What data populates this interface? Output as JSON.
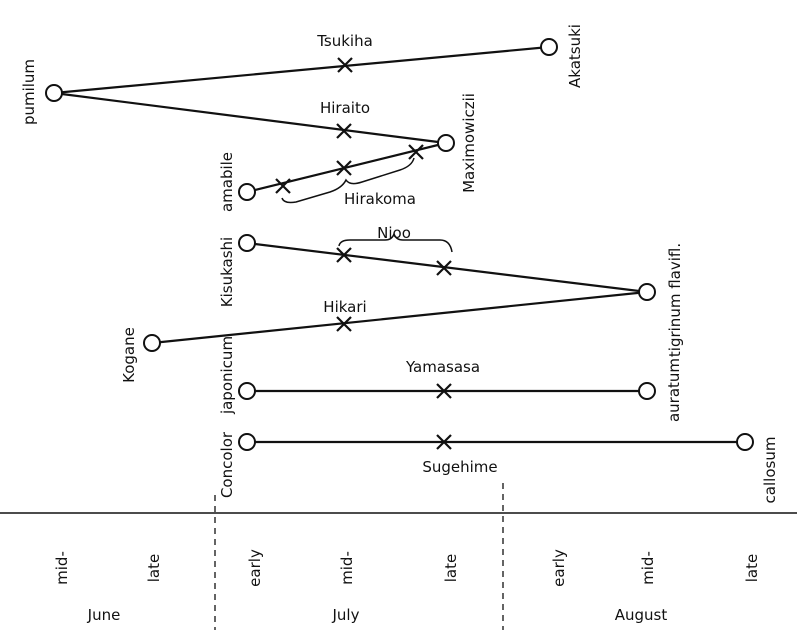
{
  "parents": {
    "pumilum": "pumilum",
    "akatsuki": "Akatsuki",
    "maximowiczii": "Maximowiczii",
    "amabile": "amabile",
    "kisukashi": "Kisukashi",
    "tigrinum_flavifl": "tigrinum flavifl.",
    "kogane": "Kogane",
    "japonicum": "japonicum",
    "auratum": "auratum",
    "concolor": "Concolor",
    "callosum": "callosum"
  },
  "hybrids": {
    "tsukiha": "Tsukiha",
    "hiraito": "Hiraito",
    "hirakoma": "Hirakoma",
    "nioo": "Nioo",
    "hikari": "Hikari",
    "yamasasa": "Yamasasa",
    "sugehime": "Sugehime"
  },
  "periods": {
    "mid": "mid-",
    "late": "late",
    "early": "early"
  },
  "months": {
    "june": "June",
    "july": "July",
    "august": "August"
  }
}
